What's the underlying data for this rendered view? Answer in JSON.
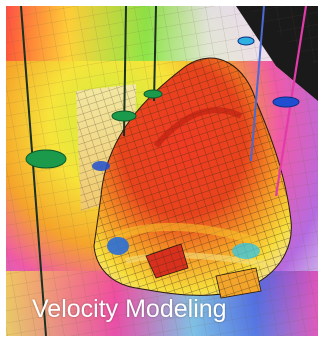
{
  "image": {
    "caption": "Velocity Modeling",
    "depicts": "3D velocity model rendering",
    "colors": {
      "background_low": "#d6c8f0",
      "velocity_high": "#e23a1a",
      "velocity_mid": "#f5d22a",
      "velocity_low": "#3a8ad6",
      "grid_line": "#3a2a1a",
      "well_marker_green": "#1a9a4a",
      "well_marker_blue": "#1f4fd0",
      "caption_text": "#ffffff"
    }
  }
}
